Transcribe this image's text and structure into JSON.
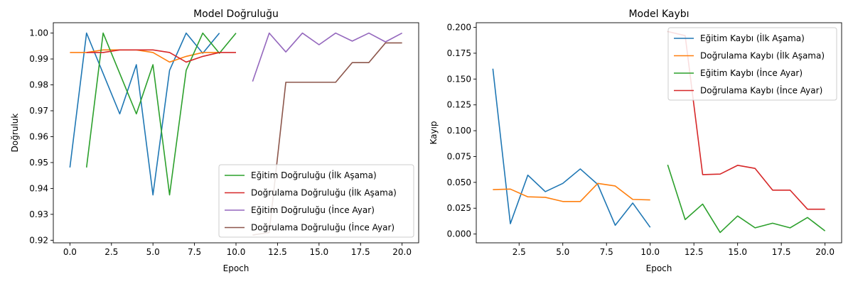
{
  "chart_data": [
    {
      "type": "line",
      "title": "Model Doğruluğu",
      "xlabel": "Epoch",
      "ylabel": "Doğruluk",
      "xlim": [
        -1.0,
        21.0
      ],
      "ylim": [
        0.919,
        1.004
      ],
      "xticks": [
        0.0,
        2.5,
        5.0,
        7.5,
        10.0,
        12.5,
        15.0,
        17.5,
        20.0
      ],
      "xtick_labels": [
        "0.0",
        "2.5",
        "5.0",
        "7.5",
        "10.0",
        "12.5",
        "15.0",
        "17.5",
        "20.0"
      ],
      "yticks": [
        0.92,
        0.93,
        0.94,
        0.95,
        0.96,
        0.97,
        0.98,
        0.99,
        1.0
      ],
      "ytick_labels": [
        "0.92",
        "0.93",
        "0.94",
        "0.95",
        "0.96",
        "0.97",
        "0.98",
        "0.99",
        "1.00"
      ],
      "grid": false,
      "legend_position": "lower-right",
      "series": [
        {
          "color": "#1f77b4",
          "in_legend": false,
          "x": [
            0,
            1,
            2,
            3,
            4,
            5,
            6,
            7,
            8,
            9
          ],
          "y": [
            0.9481,
            1.0,
            0.9844,
            0.9688,
            0.9878,
            0.9375,
            0.9856,
            1.0,
            0.9922,
            1.0
          ]
        },
        {
          "color": "#ff7f0e",
          "in_legend": false,
          "x": [
            0,
            1,
            2,
            3,
            4,
            5,
            6,
            7,
            8,
            9
          ],
          "y": [
            0.9925,
            0.9925,
            0.9935,
            0.9935,
            0.9935,
            0.9925,
            0.9888,
            0.991,
            0.9925,
            0.9925
          ]
        },
        {
          "name": "Eğitim Doğruluğu (İlk Aşama)",
          "color": "#2ca02c",
          "in_legend": true,
          "x": [
            1,
            2,
            3,
            4,
            5,
            6,
            7,
            8,
            9,
            10
          ],
          "y": [
            0.9481,
            1.0,
            0.9844,
            0.9688,
            0.9878,
            0.9375,
            0.9856,
            1.0,
            0.9922,
            1.0
          ]
        },
        {
          "name": "Doğrulama Doğruluğu (İlk Aşama)",
          "color": "#d62728",
          "in_legend": true,
          "x": [
            1,
            2,
            3,
            4,
            5,
            6,
            7,
            8,
            9,
            10
          ],
          "y": [
            0.9925,
            0.9925,
            0.9935,
            0.9935,
            0.9935,
            0.9925,
            0.9888,
            0.991,
            0.9925,
            0.9925
          ]
        },
        {
          "name": "Eğitim Doğruluğu (İnce Ayar)",
          "color": "#9467bd",
          "in_legend": true,
          "x": [
            11,
            12,
            13,
            14,
            15,
            16,
            17,
            18,
            19,
            20
          ],
          "y": [
            0.9813,
            1.0,
            0.9927,
            1.0,
            0.9955,
            1.0,
            0.9969,
            1.0,
            0.9966,
            1.0
          ]
        },
        {
          "name": "Doğrulama Doğruluğu (İnce Ayar)",
          "color": "#8c564b",
          "in_legend": true,
          "x": [
            11,
            12,
            13,
            14,
            15,
            16,
            17,
            18,
            19,
            20
          ],
          "y": [
            0.922,
            0.923,
            0.981,
            0.981,
            0.981,
            0.981,
            0.9886,
            0.9886,
            0.9962,
            0.9962
          ]
        }
      ]
    },
    {
      "type": "line",
      "title": "Model Kaybı",
      "xlabel": "Epoch",
      "ylabel": "Kayıp",
      "xlim": [
        0.05,
        20.95
      ],
      "ylim": [
        -0.0085,
        0.2045
      ],
      "xticks": [
        2.5,
        5.0,
        7.5,
        10.0,
        12.5,
        15.0,
        17.5,
        20.0
      ],
      "xtick_labels": [
        "2.5",
        "5.0",
        "7.5",
        "10.0",
        "12.5",
        "15.0",
        "17.5",
        "20.0"
      ],
      "yticks": [
        0.0,
        0.025,
        0.05,
        0.075,
        0.1,
        0.125,
        0.15,
        0.175,
        0.2
      ],
      "ytick_labels": [
        "0.000",
        "0.025",
        "0.050",
        "0.075",
        "0.100",
        "0.125",
        "0.150",
        "0.175",
        "0.200"
      ],
      "grid": false,
      "legend_position": "upper-right",
      "series": [
        {
          "name": "Eğitim Kaybı (İlk Aşama)",
          "color": "#1f77b4",
          "in_legend": true,
          "x": [
            1,
            2,
            3,
            4,
            5,
            6,
            7,
            8,
            9,
            10
          ],
          "y": [
            0.16,
            0.01,
            0.057,
            0.041,
            0.049,
            0.063,
            0.048,
            0.0085,
            0.03,
            0.0065
          ]
        },
        {
          "name": "Doğrulama Kaybı (İlk Aşama)",
          "color": "#ff7f0e",
          "in_legend": true,
          "x": [
            1,
            2,
            3,
            4,
            5,
            6,
            7,
            8,
            9,
            10
          ],
          "y": [
            0.043,
            0.0435,
            0.036,
            0.0355,
            0.0315,
            0.0315,
            0.049,
            0.0465,
            0.0335,
            0.033
          ]
        },
        {
          "name": "Eğitim Kaybı (İnce Ayar)",
          "color": "#2ca02c",
          "in_legend": true,
          "x": [
            11,
            12,
            13,
            14,
            15,
            16,
            17,
            18,
            19,
            20
          ],
          "y": [
            0.067,
            0.014,
            0.029,
            0.0015,
            0.0175,
            0.006,
            0.0105,
            0.006,
            0.016,
            0.003
          ]
        },
        {
          "name": "Doğrulama Kaybı (İnce Ayar)",
          "color": "#d62728",
          "in_legend": true,
          "x": [
            11,
            12,
            13,
            14,
            15,
            16,
            17,
            18,
            19,
            20
          ],
          "y": [
            0.196,
            0.192,
            0.0575,
            0.058,
            0.0665,
            0.0635,
            0.0425,
            0.0425,
            0.024,
            0.024
          ]
        }
      ]
    }
  ]
}
